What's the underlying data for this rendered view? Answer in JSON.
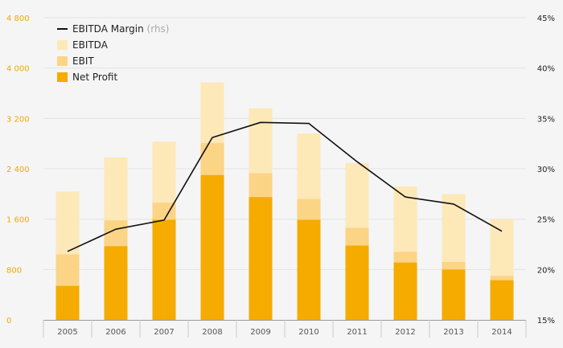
{
  "chart_data": {
    "type": "bar",
    "stacked_overlay": true,
    "categories": [
      "2005",
      "2006",
      "2007",
      "2008",
      "2009",
      "2010",
      "2011",
      "2012",
      "2013",
      "2014"
    ],
    "series": [
      {
        "name": "EBITDA",
        "kind": "bar",
        "axis": "left",
        "color": "#fde8b8",
        "values": [
          2040,
          2580,
          2830,
          3770,
          3360,
          2960,
          2490,
          2120,
          2000,
          1600
        ]
      },
      {
        "name": "EBIT",
        "kind": "bar",
        "axis": "left",
        "color": "#fcd486",
        "values": [
          1040,
          1580,
          1860,
          2810,
          2330,
          1920,
          1460,
          1080,
          920,
          700
        ]
      },
      {
        "name": "Net Profit",
        "kind": "bar",
        "axis": "left",
        "color": "#f5ab00",
        "values": [
          540,
          1170,
          1590,
          2300,
          1950,
          1590,
          1180,
          910,
          800,
          630
        ]
      },
      {
        "name": "EBITDA Margin",
        "name_suffix": "(rhs)",
        "kind": "line",
        "axis": "right",
        "color": "#111111",
        "values": [
          21.8,
          24.0,
          24.9,
          33.1,
          34.6,
          34.5,
          30.7,
          27.2,
          26.5,
          23.8
        ]
      }
    ],
    "y_left": {
      "min": 0,
      "max": 4800,
      "ticks": [
        "0",
        "800",
        "1 600",
        "2 400",
        "3 200",
        "4 000",
        "4 800"
      ]
    },
    "y_right": {
      "min": 15,
      "max": 45,
      "ticks": [
        "15%",
        "20%",
        "25%",
        "30%",
        "35%",
        "40%",
        "45%"
      ]
    },
    "grid": true,
    "legend_position": "top-left"
  }
}
